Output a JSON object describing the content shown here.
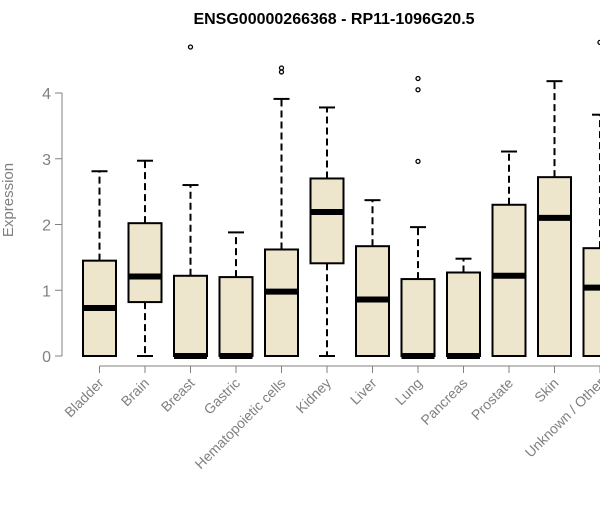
{
  "chart_data": {
    "type": "box",
    "title": "ENSG00000266368 - RP11-1096G20.5",
    "xlabel": "",
    "ylabel": "Expression",
    "ylim": [
      0,
      4.8
    ],
    "yticks": [
      0,
      1,
      2,
      3,
      4
    ],
    "grid": false,
    "legend": "none",
    "colors": {
      "box_fill": "#ede6cc",
      "stroke": "#000000",
      "axis_text": "#808080"
    },
    "categories": [
      "Bladder",
      "Brain",
      "Breast",
      "Gastric",
      "Hematopoietic cells",
      "Kidney",
      "Liver",
      "Lung",
      "Pancreas",
      "Prostate",
      "Skin",
      "Unknown / Other"
    ],
    "boxes": [
      {
        "min": 0,
        "q1": 0,
        "median": 0.73,
        "q3": 1.45,
        "max": 2.81,
        "outliers": []
      },
      {
        "min": 0,
        "q1": 0.82,
        "median": 1.21,
        "q3": 2.02,
        "max": 2.97,
        "outliers": []
      },
      {
        "min": 0,
        "q1": 0,
        "median": 0,
        "q3": 1.22,
        "max": 2.6,
        "outliers": [
          4.7
        ]
      },
      {
        "min": 0,
        "q1": 0,
        "median": 0,
        "q3": 1.2,
        "max": 1.88,
        "outliers": []
      },
      {
        "min": 0,
        "q1": 0,
        "median": 0.98,
        "q3": 1.62,
        "max": 3.91,
        "outliers": [
          4.32,
          4.38
        ]
      },
      {
        "min": 0,
        "q1": 1.41,
        "median": 2.19,
        "q3": 2.7,
        "max": 3.78,
        "outliers": []
      },
      {
        "min": 0,
        "q1": 0,
        "median": 0.86,
        "q3": 1.67,
        "max": 2.37,
        "outliers": []
      },
      {
        "min": 0,
        "q1": 0,
        "median": 0,
        "q3": 1.17,
        "max": 1.96,
        "outliers": [
          2.96,
          4.05,
          4.22
        ]
      },
      {
        "min": 0,
        "q1": 0,
        "median": 0,
        "q3": 1.27,
        "max": 1.48,
        "outliers": []
      },
      {
        "min": 0,
        "q1": 0,
        "median": 1.22,
        "q3": 2.3,
        "max": 3.11,
        "outliers": []
      },
      {
        "min": 0,
        "q1": 0,
        "median": 2.1,
        "q3": 2.72,
        "max": 4.18,
        "outliers": []
      },
      {
        "min": 0,
        "q1": 0,
        "median": 1.04,
        "q3": 1.64,
        "max": 3.67,
        "outliers": [
          4.77
        ]
      }
    ]
  }
}
